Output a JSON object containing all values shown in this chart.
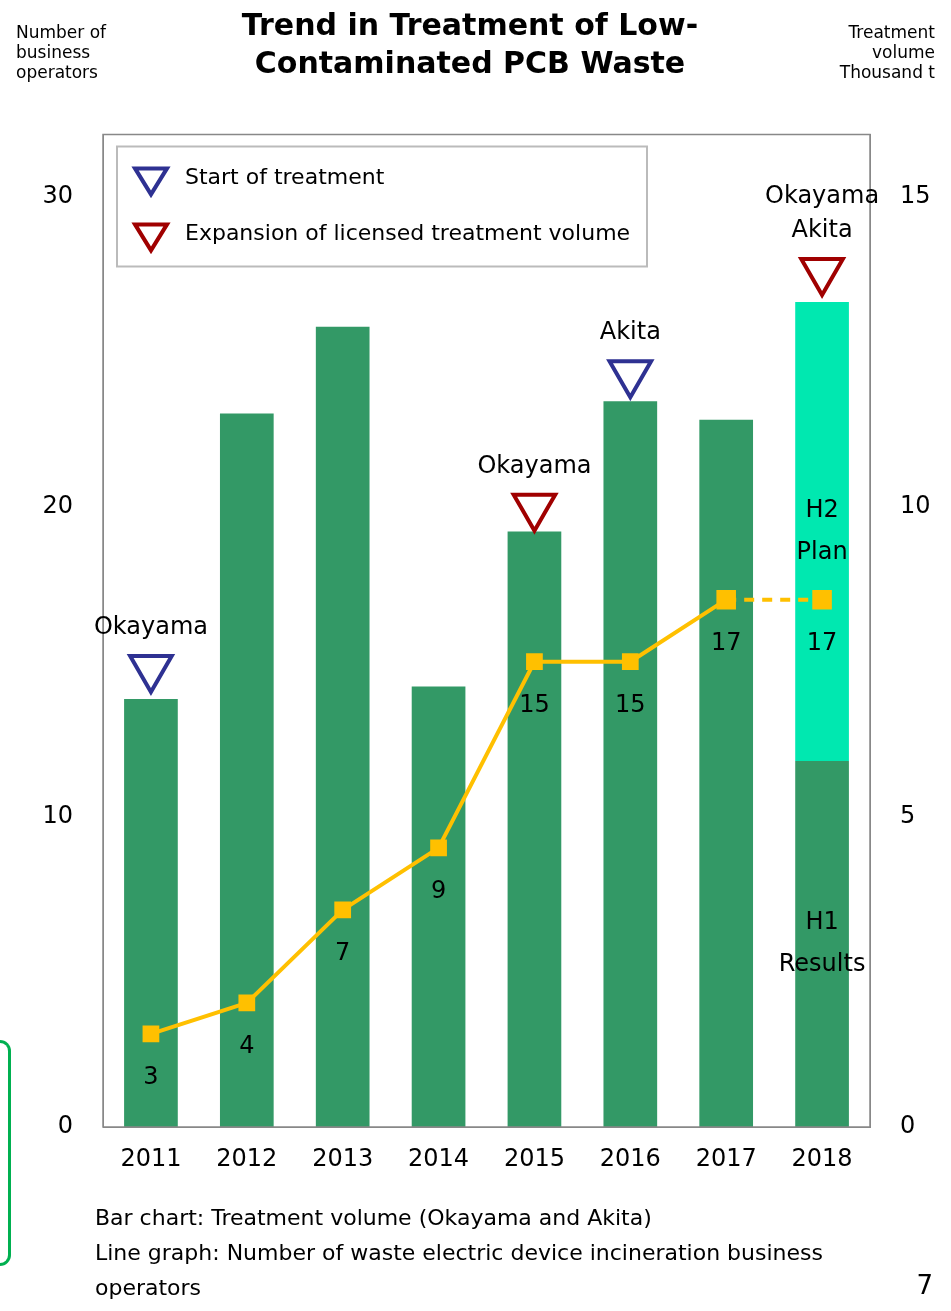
{
  "chart_data": {
    "type": "bar",
    "title": "Trend in Treatment of Low-Contaminated PCB Waste",
    "ylabel": "Number of business operators",
    "y2label": "Treatment volume Thousand t",
    "categories": [
      "2011",
      "2012",
      "2013",
      "2014",
      "2015",
      "2016",
      "2017",
      "2018"
    ],
    "stacked": true,
    "series": [
      {
        "name": "H1 Results",
        "axis": "y2",
        "color": "#339966",
        "values": [
          6.9,
          11.5,
          12.9,
          7.1,
          9.6,
          11.7,
          11.4,
          5.9
        ]
      },
      {
        "name": "H2 Plan",
        "axis": "y2",
        "color": "#00e8b0",
        "values": [
          null,
          null,
          null,
          null,
          null,
          null,
          null,
          7.4
        ]
      },
      {
        "type": "line",
        "axis": "y",
        "color": "#ffc000",
        "marker": "square",
        "line_style": "solid",
        "values": [
          3,
          4,
          7,
          9,
          15,
          15,
          17,
          null
        ],
        "value_labels": [
          "3",
          "4",
          "7",
          "9",
          "15",
          "15",
          "17",
          null
        ]
      },
      {
        "type": "line",
        "axis": "y",
        "color": "#ffc000",
        "marker": "square",
        "line_style": "dashed",
        "values": [
          null,
          null,
          null,
          null,
          null,
          null,
          17,
          17
        ],
        "value_labels": [
          null,
          null,
          null,
          null,
          null,
          null,
          null,
          "17"
        ]
      },
      {
        "name": "Start of treatment",
        "type": "scatter",
        "axis": "y",
        "color": "#2e3192",
        "marker": "triangle",
        "values": [
          14.8,
          null,
          null,
          null,
          null,
          24.3,
          null,
          null
        ],
        "value_labels": [
          "Okayama",
          null,
          null,
          null,
          null,
          "Akita",
          null,
          null
        ]
      },
      {
        "name": "Expansion of licensed treatment volume",
        "type": "scatter",
        "axis": "y",
        "color": "#a00000",
        "marker": "triangle",
        "values": [
          null,
          null,
          null,
          null,
          20.0,
          null,
          null,
          27.6
        ],
        "value_labels": [
          null,
          null,
          null,
          null,
          "Okayama",
          null,
          null,
          "Okayama Akita"
        ]
      }
    ],
    "ylim": [
      0,
      32
    ],
    "yticks": [
      0,
      10,
      20,
      30
    ],
    "y2lim": [
      0,
      16
    ],
    "y2ticks": [
      0,
      5,
      10,
      15
    ],
    "grid": false,
    "legend": "top left",
    "annotations": [
      "Bar chart: Treatment volume (Okayama and Akita)",
      "Line graph: Number of waste electric device incineration business operators",
      "7"
    ]
  }
}
